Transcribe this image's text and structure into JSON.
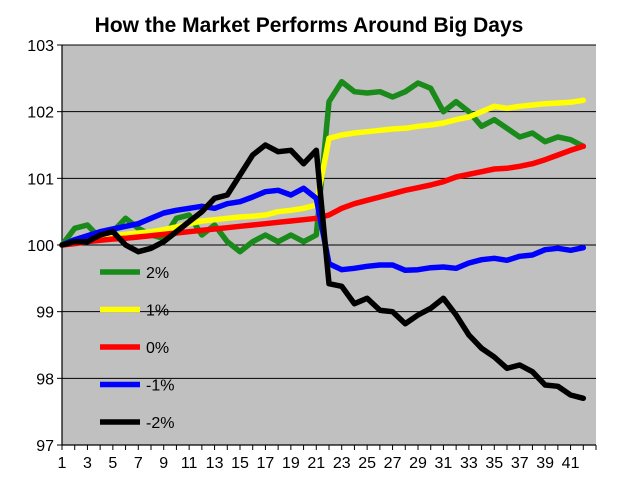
{
  "chart_data": {
    "type": "line",
    "title": "How the Market Performs Around Big Days",
    "xlabel": "",
    "ylabel": "",
    "ylim": [
      97,
      103
    ],
    "xlim": [
      1,
      42
    ],
    "y_ticks": [
      "97",
      "98",
      "99",
      "100",
      "101",
      "102",
      "103"
    ],
    "x_ticks": [
      "1",
      "3",
      "5",
      "7",
      "9",
      "11",
      "13",
      "15",
      "17",
      "19",
      "21",
      "23",
      "25",
      "27",
      "29",
      "31",
      "33",
      "35",
      "37",
      "39",
      "41"
    ],
    "x": [
      1,
      2,
      3,
      4,
      5,
      6,
      7,
      8,
      9,
      10,
      11,
      12,
      13,
      14,
      15,
      16,
      17,
      18,
      19,
      20,
      21,
      22,
      23,
      24,
      25,
      26,
      27,
      28,
      29,
      30,
      31,
      32,
      33,
      34,
      35,
      36,
      37,
      38,
      39,
      40,
      41,
      42
    ],
    "grid": true,
    "legend_placement": "lower-left inside plot",
    "plot_background": "#c0c0c0",
    "series": [
      {
        "name": "2%",
        "color": "#1a8a1a",
        "values": [
          100.0,
          100.25,
          100.3,
          100.1,
          100.2,
          100.4,
          100.25,
          100.15,
          100.1,
          100.4,
          100.45,
          100.15,
          100.3,
          100.05,
          99.9,
          100.05,
          100.15,
          100.05,
          100.15,
          100.05,
          100.15,
          102.15,
          102.45,
          102.3,
          102.28,
          102.3,
          102.22,
          102.3,
          102.43,
          102.35,
          102.0,
          102.15,
          102.0,
          101.78,
          101.88,
          101.75,
          101.62,
          101.68,
          101.55,
          101.62,
          101.58,
          101.48
        ]
      },
      {
        "name": "1%",
        "color": "#ffff00",
        "values": [
          100.0,
          100.04,
          100.08,
          100.12,
          100.14,
          100.16,
          100.18,
          100.2,
          100.23,
          100.27,
          100.32,
          100.36,
          100.38,
          100.4,
          100.42,
          100.43,
          100.45,
          100.5,
          100.52,
          100.55,
          100.6,
          101.6,
          101.65,
          101.68,
          101.7,
          101.72,
          101.74,
          101.75,
          101.78,
          101.8,
          101.83,
          101.88,
          101.92,
          102.0,
          102.08,
          102.05,
          102.08,
          102.1,
          102.12,
          102.13,
          102.14,
          102.17
        ]
      },
      {
        "name": "0%",
        "color": "#ff0000",
        "values": [
          100.0,
          100.02,
          100.05,
          100.07,
          100.09,
          100.1,
          100.12,
          100.14,
          100.16,
          100.18,
          100.2,
          100.22,
          100.24,
          100.26,
          100.28,
          100.3,
          100.32,
          100.34,
          100.36,
          100.38,
          100.4,
          100.45,
          100.55,
          100.62,
          100.67,
          100.72,
          100.77,
          100.82,
          100.86,
          100.9,
          100.95,
          101.02,
          101.06,
          101.1,
          101.14,
          101.15,
          101.18,
          101.22,
          101.28,
          101.35,
          101.42,
          101.48
        ]
      },
      {
        "name": "-1%",
        "color": "#0000ff",
        "values": [
          100.0,
          100.08,
          100.14,
          100.2,
          100.24,
          100.28,
          100.32,
          100.4,
          100.48,
          100.52,
          100.55,
          100.58,
          100.55,
          100.62,
          100.65,
          100.72,
          100.8,
          100.82,
          100.75,
          100.85,
          100.7,
          99.72,
          99.63,
          99.65,
          99.68,
          99.7,
          99.7,
          99.62,
          99.63,
          99.66,
          99.67,
          99.65,
          99.73,
          99.78,
          99.8,
          99.77,
          99.83,
          99.85,
          99.93,
          99.95,
          99.92,
          99.96
        ]
      },
      {
        "name": "-2%",
        "color": "#000000",
        "values": [
          100.0,
          100.05,
          100.05,
          100.15,
          100.2,
          100.0,
          99.9,
          99.95,
          100.05,
          100.2,
          100.35,
          100.5,
          100.7,
          100.75,
          101.05,
          101.35,
          101.5,
          101.4,
          101.42,
          101.22,
          101.42,
          99.42,
          99.38,
          99.12,
          99.2,
          99.02,
          99.0,
          98.82,
          98.95,
          99.05,
          99.2,
          98.95,
          98.65,
          98.45,
          98.32,
          98.15,
          98.2,
          98.1,
          97.9,
          97.88,
          97.75,
          97.7
        ]
      }
    ]
  }
}
